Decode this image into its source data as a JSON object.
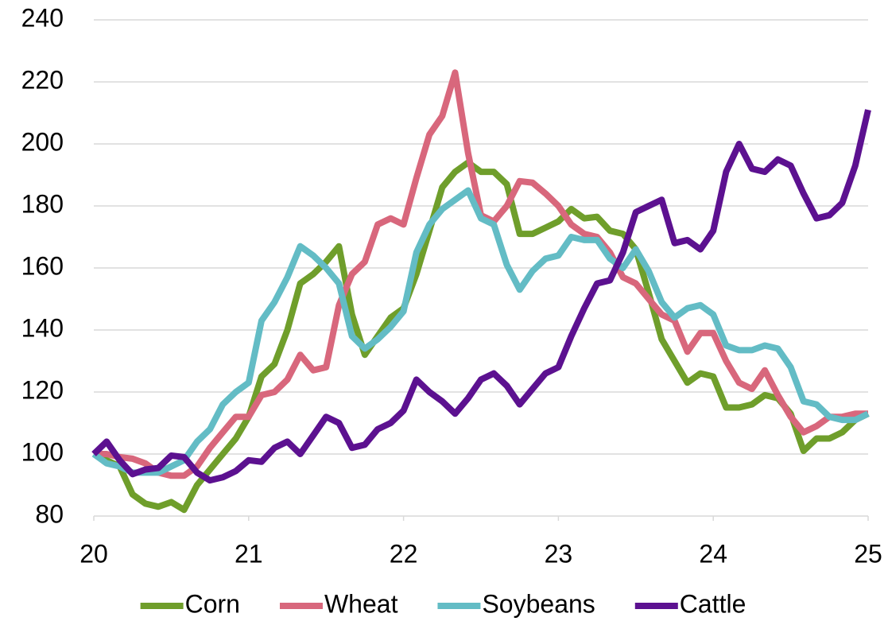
{
  "chart_data": {
    "type": "line",
    "x": [
      20,
      20.083,
      20.167,
      20.25,
      20.333,
      20.417,
      20.5,
      20.583,
      20.667,
      20.75,
      20.833,
      20.917,
      21,
      21.083,
      21.167,
      21.25,
      21.333,
      21.417,
      21.5,
      21.583,
      21.667,
      21.75,
      21.833,
      21.917,
      22,
      22.083,
      22.167,
      22.25,
      22.333,
      22.417,
      22.5,
      22.583,
      22.667,
      22.75,
      22.833,
      22.917,
      23,
      23.083,
      23.167,
      23.25,
      23.333,
      23.417,
      23.5,
      23.583,
      23.667,
      23.75,
      23.833,
      23.917,
      24,
      24.083,
      24.167,
      24.25,
      24.333,
      24.417,
      24.5,
      24.583,
      24.667,
      24.75,
      24.833,
      24.917,
      25
    ],
    "series": [
      {
        "name": "Corn",
        "color": "#6f9e2b",
        "values": [
          100,
          98,
          96,
          87,
          84,
          83,
          84.5,
          82,
          90,
          95,
          100,
          105,
          112,
          125,
          129,
          140,
          155,
          158,
          162,
          167,
          145,
          132,
          138,
          144,
          147,
          158,
          172,
          186,
          191,
          194,
          191,
          191,
          187,
          171,
          171,
          173,
          175,
          179,
          176,
          176.5,
          172,
          171,
          166,
          152,
          137,
          130,
          123,
          126,
          125,
          115,
          115,
          116,
          119,
          118,
          113,
          101,
          105,
          105,
          107,
          111,
          113
        ]
      },
      {
        "name": "Wheat",
        "color": "#d8677c",
        "values": [
          100,
          100,
          99,
          98.5,
          97,
          94,
          93,
          93,
          96,
          102,
          107,
          112,
          112,
          119,
          120,
          124,
          132,
          127,
          128,
          148,
          158,
          162,
          174,
          176,
          174,
          189,
          203,
          209,
          223,
          197,
          177,
          175,
          180,
          188,
          187.5,
          184,
          180,
          174,
          171,
          170,
          165,
          157,
          155,
          150,
          145,
          143,
          133,
          139,
          139,
          130,
          123,
          121,
          127,
          119,
          112,
          107,
          109,
          112,
          112,
          113,
          113
        ]
      },
      {
        "name": "Soybeans",
        "color": "#63bcc5",
        "values": [
          100,
          97,
          96,
          94,
          94,
          94,
          96,
          98,
          104,
          108,
          116,
          120,
          123,
          143,
          149,
          157,
          167,
          164,
          160,
          155,
          138,
          134,
          137,
          141,
          146,
          165,
          174,
          179,
          182,
          185,
          176,
          174,
          161,
          153,
          159,
          163,
          164,
          170,
          169,
          169,
          163,
          160,
          166,
          159,
          149,
          144,
          147,
          148,
          145,
          135,
          133.5,
          133.5,
          135,
          134,
          128,
          117,
          116,
          112,
          111,
          111,
          113
        ]
      },
      {
        "name": "Cattle",
        "color": "#5c1190",
        "values": [
          100,
          104,
          98,
          93.5,
          95,
          95.5,
          99.5,
          99,
          94,
          91.5,
          92.5,
          94.5,
          98,
          97.5,
          102,
          104,
          100,
          106,
          112,
          110,
          102,
          103,
          108,
          110,
          114,
          124,
          120,
          117,
          113,
          118,
          124,
          126,
          122,
          116,
          121,
          126,
          128,
          138,
          147,
          155,
          156,
          165,
          178,
          180,
          182,
          168,
          169,
          166,
          172,
          191,
          200,
          192,
          191,
          195,
          193,
          184,
          176,
          177,
          181,
          193,
          211
        ]
      }
    ],
    "xlim": [
      20,
      25
    ],
    "xticks": [
      20,
      21,
      22,
      23,
      24,
      25
    ],
    "ylim": [
      80,
      240
    ],
    "yticks": [
      80,
      100,
      120,
      140,
      160,
      180,
      200,
      220,
      240
    ],
    "grid": true,
    "legend": "bottom"
  }
}
